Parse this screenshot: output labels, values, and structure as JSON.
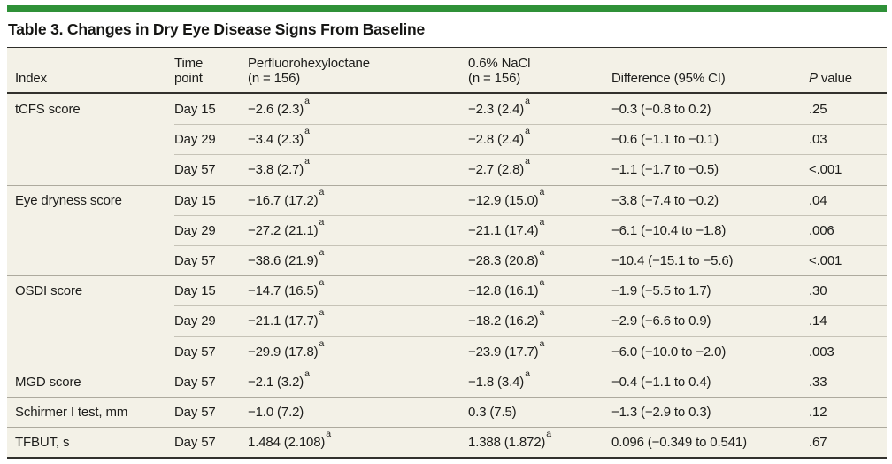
{
  "colors": {
    "accent-green": "#2f9138",
    "table-bg": "#f3f1e7",
    "text": "#1d1d1b"
  },
  "title": "Table 3. Changes in Dry Eye Disease Signs From Baseline",
  "table": {
    "headers": {
      "index": "Index",
      "time": "Time point",
      "pfho_label": "Perfluorohexyloctane",
      "pfho_n": "(n = 156)",
      "nacl_label": "0.6% NaCl",
      "nacl_n": "(n = 156)",
      "difference": "Difference (95% CI)",
      "p_italic": "P",
      "p_rest": " value"
    },
    "footnote_marker": "a",
    "rows": [
      {
        "index": "tCFS score",
        "time": "Day 15",
        "pfho": "−2.6 (2.3)",
        "pfho_sup": "a",
        "nacl": "−2.3 (2.4)",
        "nacl_sup": "a",
        "diff": "−0.3 (−0.8 to 0.2)",
        "p": ".25"
      },
      {
        "index": "",
        "time": "Day 29",
        "pfho": "−3.4 (2.3)",
        "pfho_sup": "a",
        "nacl": "−2.8 (2.4)",
        "nacl_sup": "a",
        "diff": "−0.6 (−1.1 to −0.1)",
        "p": ".03"
      },
      {
        "index": "",
        "time": "Day 57",
        "pfho": "−3.8 (2.7)",
        "pfho_sup": "a",
        "nacl": "−2.7 (2.8)",
        "nacl_sup": "a",
        "diff": "−1.1 (−1.7 to −0.5)",
        "p": "<.001"
      },
      {
        "index": "Eye dryness score",
        "time": "Day 15",
        "pfho": "−16.7 (17.2)",
        "pfho_sup": "a",
        "nacl": "−12.9 (15.0)",
        "nacl_sup": "a",
        "diff": "−3.8 (−7.4 to −0.2)",
        "p": ".04"
      },
      {
        "index": "",
        "time": "Day 29",
        "pfho": "−27.2 (21.1)",
        "pfho_sup": "a",
        "nacl": "−21.1 (17.4)",
        "nacl_sup": "a",
        "diff": "−6.1 (−10.4 to −1.8)",
        "p": ".006"
      },
      {
        "index": "",
        "time": "Day 57",
        "pfho": "−38.6 (21.9)",
        "pfho_sup": "a",
        "nacl": "−28.3 (20.8)",
        "nacl_sup": "a",
        "diff": "−10.4 (−15.1 to −5.6)",
        "p": "<.001"
      },
      {
        "index": "OSDI score",
        "time": "Day 15",
        "pfho": "−14.7 (16.5)",
        "pfho_sup": "a",
        "nacl": "−12.8 (16.1)",
        "nacl_sup": "a",
        "diff": "−1.9 (−5.5 to 1.7)",
        "p": ".30"
      },
      {
        "index": "",
        "time": "Day 29",
        "pfho": "−21.1 (17.7)",
        "pfho_sup": "a",
        "nacl": "−18.2 (16.2)",
        "nacl_sup": "a",
        "diff": "−2.9 (−6.6 to 0.9)",
        "p": ".14"
      },
      {
        "index": "",
        "time": "Day 57",
        "pfho": "−29.9 (17.8)",
        "pfho_sup": "a",
        "nacl": "−23.9 (17.7)",
        "nacl_sup": "a",
        "diff": "−6.0 (−10.0 to −2.0)",
        "p": ".003"
      },
      {
        "index": "MGD score",
        "time": "Day 57",
        "pfho": "−2.1 (3.2)",
        "pfho_sup": "a",
        "nacl": "−1.8 (3.4)",
        "nacl_sup": "a",
        "diff": "−0.4 (−1.1 to 0.4)",
        "p": ".33"
      },
      {
        "index": "Schirmer I test, mm",
        "time": "Day 57",
        "pfho": "−1.0 (7.2)",
        "pfho_sup": "",
        "nacl": "0.3 (7.5)",
        "nacl_sup": "",
        "diff": "−1.3 (−2.9 to 0.3)",
        "p": ".12"
      },
      {
        "index": "TFBUT, s",
        "time": "Day 57",
        "pfho": "1.484 (2.108)",
        "pfho_sup": "a",
        "nacl": "1.388 (1.872)",
        "nacl_sup": "a",
        "diff": "0.096 (−0.349 to 0.541)",
        "p": ".67"
      }
    ]
  }
}
